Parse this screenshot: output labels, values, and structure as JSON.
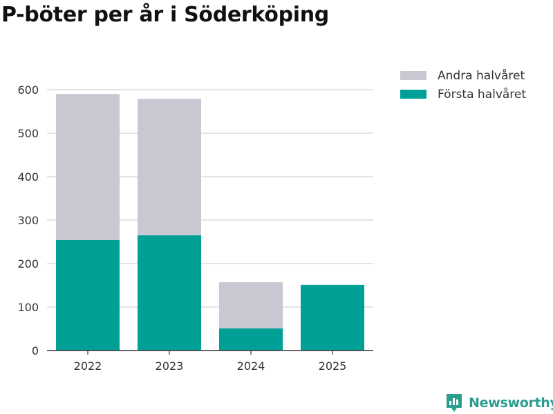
{
  "chart_data": {
    "type": "bar",
    "stacked": true,
    "title": "P-böter per år i Söderköping",
    "categories": [
      "2022",
      "2023",
      "2024",
      "2025"
    ],
    "series": [
      {
        "name": "Första halvåret",
        "color": "#00a096",
        "values": [
          254,
          265,
          51,
          151
        ]
      },
      {
        "name": "Andra halvåret",
        "color": "#c8c7d2",
        "values": [
          336,
          314,
          106,
          0
        ]
      }
    ],
    "legend_order": [
      "Andra halvåret",
      "Första halvåret"
    ],
    "yticks": [
      0,
      100,
      200,
      300,
      400,
      500,
      600
    ],
    "ylim": [
      0,
      600
    ],
    "xlabel": "",
    "ylabel": "",
    "grid": true,
    "legend_position": "top-right"
  },
  "brand": {
    "name": "Newsworthy",
    "color": "#2a9d8f"
  }
}
